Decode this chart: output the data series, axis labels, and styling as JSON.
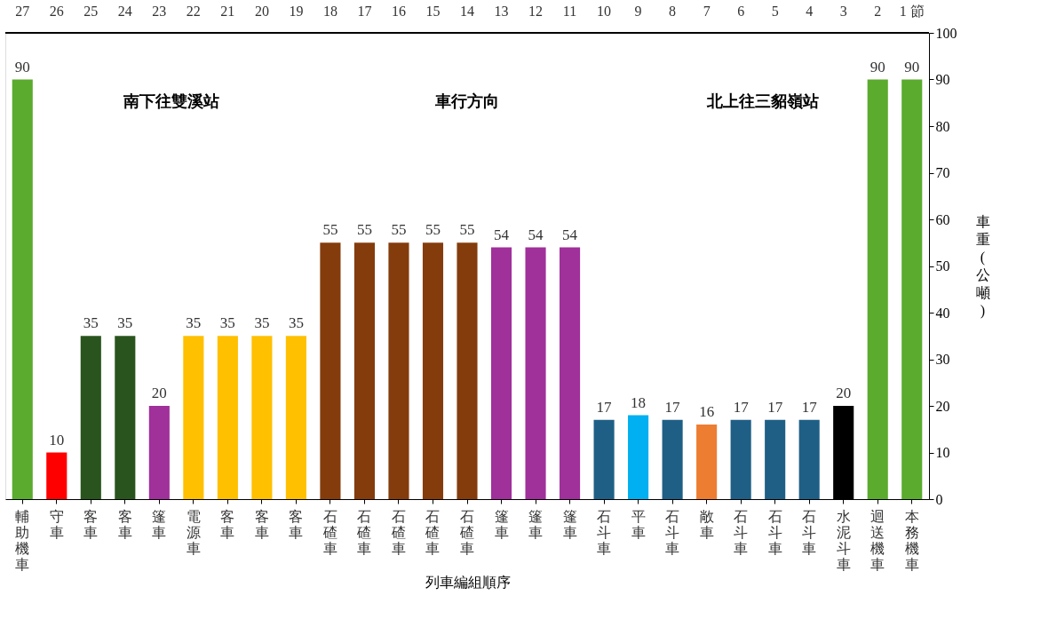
{
  "chart_data": {
    "type": "bar",
    "xlabel": "列車編組順序",
    "ylabel": "車重(公噸)",
    "categories": [
      "輔助機車",
      "守車",
      "客車",
      "客車",
      "篷車",
      "電源車",
      "客車",
      "客車",
      "客車",
      "石碴車",
      "石碴車",
      "石碴車",
      "石碴車",
      "石碴車",
      "篷車",
      "篷車",
      "篷車",
      "石斗車",
      "平車",
      "石斗車",
      "敞車",
      "石斗車",
      "石斗車",
      "石斗車",
      "水泥斗車",
      "迴送機車",
      "本務機車"
    ],
    "values": [
      90,
      10,
      35,
      35,
      20,
      35,
      35,
      35,
      35,
      55,
      55,
      55,
      55,
      55,
      54,
      54,
      54,
      17,
      18,
      17,
      16,
      17,
      17,
      17,
      20,
      90,
      90
    ],
    "colors": [
      "#5aab2e",
      "#ff0000",
      "#2a541e",
      "#2a541e",
      "#a0309a",
      "#ffc000",
      "#ffc000",
      "#ffc000",
      "#ffc000",
      "#843c0c",
      "#843c0c",
      "#843c0c",
      "#843c0c",
      "#843c0c",
      "#a0309a",
      "#a0309a",
      "#a0309a",
      "#1f5f86",
      "#00b0f0",
      "#1f5f86",
      "#ed7d31",
      "#1f5f86",
      "#1f5f86",
      "#1f5f86",
      "#000000",
      "#5aab2e",
      "#5aab2e"
    ],
    "ylim": [
      0,
      100
    ],
    "yticks": [
      0,
      10,
      20,
      30,
      40,
      50,
      60,
      70,
      80,
      90,
      100
    ],
    "data_labels": true,
    "grid": false,
    "annotations": [
      "27",
      "26",
      "25",
      "24",
      "23",
      "22",
      "21",
      "20",
      "19",
      "18",
      "17",
      "16",
      "15",
      "14",
      "13",
      "12",
      "11",
      "10",
      "9",
      "8",
      "7",
      "6",
      "5",
      "4",
      "3",
      "2",
      "1 節",
      "南下往雙溪站",
      "車行方向",
      "北上往三貂嶺站"
    ]
  }
}
